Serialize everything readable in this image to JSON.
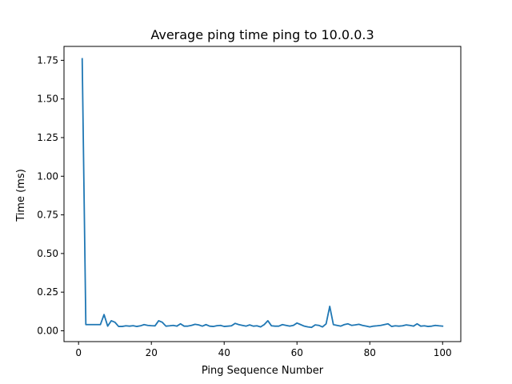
{
  "chart_data": {
    "type": "line",
    "title": "Average ping time ping to 10.0.0.3",
    "xlabel": "Ping Sequence Number",
    "ylabel": "Time (ms)",
    "xlim": [
      -4.0,
      105.0
    ],
    "ylim": [
      -0.07,
      1.84
    ],
    "x_ticks": [
      0,
      20,
      40,
      60,
      80,
      100
    ],
    "x_tick_labels": [
      "0",
      "20",
      "40",
      "60",
      "80",
      "100"
    ],
    "y_ticks": [
      0.0,
      0.25,
      0.5,
      0.75,
      1.0,
      1.25,
      1.5,
      1.75
    ],
    "y_tick_labels": [
      "0.00",
      "0.25",
      "0.50",
      "0.75",
      "1.00",
      "1.25",
      "1.50",
      "1.75"
    ],
    "grid": false,
    "legend": "none",
    "colors": {
      "line": "#1f77b4",
      "axes": "#000000",
      "background": "#ffffff"
    },
    "series": [
      {
        "x": [
          1,
          2,
          3,
          4,
          5,
          6,
          7,
          8,
          9,
          10,
          11,
          12,
          13,
          14,
          15,
          16,
          17,
          18,
          19,
          20,
          21,
          22,
          23,
          24,
          25,
          26,
          27,
          28,
          29,
          30,
          31,
          32,
          33,
          34,
          35,
          36,
          37,
          38,
          39,
          40,
          41,
          42,
          43,
          44,
          45,
          46,
          47,
          48,
          49,
          50,
          51,
          52,
          53,
          54,
          55,
          56,
          57,
          58,
          59,
          60,
          61,
          62,
          63,
          64,
          65,
          66,
          67,
          68,
          69,
          70,
          71,
          72,
          73,
          74,
          75,
          76,
          77,
          78,
          79,
          80,
          81,
          82,
          83,
          84,
          85,
          86,
          87,
          88,
          89,
          90,
          91,
          92,
          93,
          94,
          95,
          96,
          97,
          98,
          99,
          100
        ],
        "values": [
          1.76,
          0.04,
          0.04,
          0.04,
          0.04,
          0.04,
          0.105,
          0.03,
          0.065,
          0.055,
          0.028,
          0.028,
          0.032,
          0.03,
          0.033,
          0.028,
          0.032,
          0.04,
          0.035,
          0.033,
          0.032,
          0.065,
          0.055,
          0.03,
          0.032,
          0.035,
          0.03,
          0.045,
          0.03,
          0.03,
          0.035,
          0.042,
          0.038,
          0.03,
          0.04,
          0.03,
          0.028,
          0.033,
          0.035,
          0.028,
          0.03,
          0.032,
          0.048,
          0.04,
          0.035,
          0.03,
          0.038,
          0.03,
          0.032,
          0.025,
          0.04,
          0.065,
          0.032,
          0.03,
          0.03,
          0.04,
          0.035,
          0.03,
          0.035,
          0.05,
          0.04,
          0.03,
          0.025,
          0.022,
          0.038,
          0.035,
          0.025,
          0.045,
          0.158,
          0.04,
          0.035,
          0.03,
          0.04,
          0.045,
          0.035,
          0.038,
          0.042,
          0.035,
          0.03,
          0.025,
          0.03,
          0.032,
          0.035,
          0.04,
          0.045,
          0.028,
          0.032,
          0.03,
          0.032,
          0.038,
          0.035,
          0.03,
          0.045,
          0.03,
          0.032,
          0.028,
          0.03,
          0.035,
          0.032,
          0.03
        ]
      }
    ]
  }
}
